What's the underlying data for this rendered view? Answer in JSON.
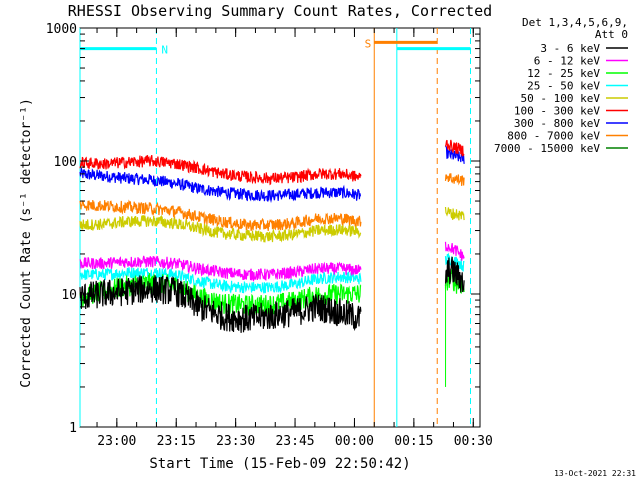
{
  "chart_data": {
    "type": "line",
    "title": "RHESSI Observing Summary Count Rates, Corrected",
    "xlabel": "Start Time (15-Feb-09 22:50:42)",
    "ylabel": "Corrected Count Rate (s⁻¹ detector⁻¹)",
    "yscale": "log",
    "ylim": [
      1,
      1000
    ],
    "xlim_minutes": [
      0,
      101
    ],
    "x_ticks": [
      "23:00",
      "23:15",
      "23:30",
      "23:45",
      "00:00",
      "00:15",
      "00:30"
    ],
    "x_tick_minutes": [
      9.3,
      24.3,
      39.3,
      54.3,
      69.3,
      84.3,
      99.3
    ],
    "y_ticks": [
      "1",
      "10",
      "100",
      "1000"
    ],
    "y_tick_values": [
      1,
      10,
      100,
      1000
    ],
    "legend_header": [
      "Det 1,3,4,5,6,9,",
      "Att 0"
    ],
    "legend_position": "right",
    "footer": "13-Oct-2021 22:31",
    "series": [
      {
        "name": "3 - 6 keV",
        "color": "#000000",
        "segments": [
          {
            "x": [
              0,
              6,
              12,
              18,
              24,
              30,
              36,
              42,
              48,
              54,
              60,
              66,
              71
            ],
            "y": [
              9.5,
              10,
              10.5,
              11,
              10.5,
              8,
              6.8,
              6.5,
              6.8,
              7.3,
              8,
              7.2,
              6.5
            ]
          },
          {
            "x": [
              92.3,
              93,
              94,
              95,
              96,
              97
            ],
            "y": [
              13,
              15,
              15,
              14,
              13,
              12
            ]
          }
        ]
      },
      {
        "name": "6 - 12 keV",
        "color": "#ff00ff",
        "segments": [
          {
            "x": [
              0,
              6,
              12,
              18,
              24,
              30,
              36,
              42,
              48,
              54,
              60,
              66,
              71
            ],
            "y": [
              17,
              17,
              17.5,
              17.5,
              17,
              15.5,
              14.5,
              14,
              14,
              14.5,
              15.5,
              15.5,
              15
            ]
          },
          {
            "x": [
              92.3,
              93,
              94,
              95,
              96,
              97
            ],
            "y": [
              23,
              23,
              22,
              21,
              20,
              19
            ]
          }
        ]
      },
      {
        "name": "12 - 25 keV",
        "color": "#00ff00",
        "segments": [
          {
            "x": [
              0,
              6,
              12,
              18,
              24,
              30,
              36,
              42,
              48,
              54,
              60,
              66,
              71
            ],
            "y": [
              9.5,
              10.5,
              11.5,
              12,
              11.5,
              9.5,
              8.5,
              8.2,
              8.3,
              8.8,
              9.8,
              10,
              10
            ]
          },
          {
            "x": [
              92.3,
              93,
              94,
              95,
              96,
              97
            ],
            "y": [
              12,
              13,
              13,
              12,
              12,
              11
            ]
          }
        ]
      },
      {
        "name": "25 - 50 keV",
        "color": "#00ffff",
        "segments": [
          {
            "x": [
              0,
              6,
              12,
              18,
              24,
              30,
              36,
              42,
              48,
              54,
              60,
              66,
              71
            ],
            "y": [
              14,
              14,
              14.5,
              14.5,
              14,
              12.5,
              11.5,
              11.2,
              11.2,
              11.8,
              13,
              13.5,
              13
            ]
          },
          {
            "x": [
              92.3,
              93,
              94,
              95,
              96,
              97
            ],
            "y": [
              18,
              18.5,
              18,
              17.5,
              17,
              16
            ]
          }
        ]
      },
      {
        "name": "50 - 100 keV",
        "color": "#cccc00",
        "segments": [
          {
            "x": [
              0,
              6,
              12,
              18,
              24,
              30,
              36,
              42,
              48,
              54,
              60,
              66,
              71
            ],
            "y": [
              33,
              33.5,
              35,
              35.5,
              34,
              31,
              28.5,
              27.5,
              27,
              28,
              30,
              30.5,
              29.5
            ]
          },
          {
            "x": [
              92.3,
              93,
              94,
              95,
              96,
              97
            ],
            "y": [
              42,
              41,
              40,
              40,
              39,
              39
            ]
          }
        ]
      },
      {
        "name": "100 - 300 keV",
        "color": "#ff0000",
        "segments": [
          {
            "x": [
              0,
              6,
              12,
              18,
              24,
              30,
              36,
              42,
              48,
              54,
              60,
              66,
              71
            ],
            "y": [
              97,
              95,
              98,
              100,
              96,
              88,
              80,
              76,
              74,
              75,
              80,
              80,
              75
            ]
          },
          {
            "x": [
              92.3,
              93,
              94,
              95,
              96,
              97
            ],
            "y": [
              138,
              133,
              128,
              125,
              122,
              120
            ]
          }
        ]
      },
      {
        "name": "300 - 800 keV",
        "color": "#0000ff",
        "segments": [
          {
            "x": [
              0,
              6,
              12,
              18,
              24,
              30,
              36,
              42,
              48,
              54,
              60,
              66,
              71
            ],
            "y": [
              80,
              77,
              74,
              72,
              68,
              62,
              58,
              56,
              55,
              56,
              58,
              58,
              55
            ]
          },
          {
            "x": [
              92.3,
              93,
              94,
              95,
              96,
              97
            ],
            "y": [
              117,
              113,
              110,
              108,
              106,
              104
            ]
          }
        ]
      },
      {
        "name": "800 - 7000 keV",
        "color": "#ff8000",
        "segments": [
          {
            "x": [
              0,
              6,
              12,
              18,
              24,
              30,
              36,
              42,
              48,
              54,
              60,
              66,
              71
            ],
            "y": [
              47,
              46,
              45,
              44,
              42,
              38,
              35,
              33,
              33,
              34,
              37,
              37,
              35
            ]
          },
          {
            "x": [
              92.3,
              93,
              94,
              95,
              96,
              97
            ],
            "y": [
              78,
              76,
              74,
              73,
              72,
              71
            ]
          }
        ]
      },
      {
        "name": "7000 - 15000 keV",
        "color": "#008000",
        "segments": []
      }
    ],
    "flag_bars": [
      {
        "label": "N",
        "color": "#00ffff",
        "x_start": 0,
        "x_end": 19.3,
        "y": 700
      },
      {
        "label": "S",
        "color": "#ff8000",
        "x_start": 74.3,
        "x_end": 90.2,
        "y": 780
      },
      {
        "label": "",
        "color": "#00ffff",
        "x_start": 80,
        "x_end": 98.6,
        "y": 700
      }
    ],
    "markers": [
      {
        "x": 0,
        "color": "#00ffff",
        "style": "solid"
      },
      {
        "x": 19.3,
        "color": "#00ffff",
        "style": "dashed"
      },
      {
        "x": 74.3,
        "color": "#ff8000",
        "style": "solid"
      },
      {
        "x": 80,
        "color": "#00ffff",
        "style": "solid"
      },
      {
        "x": 90.2,
        "color": "#ff8000",
        "style": "dashed"
      },
      {
        "x": 98.6,
        "color": "#00ffff",
        "style": "dashed"
      }
    ]
  }
}
